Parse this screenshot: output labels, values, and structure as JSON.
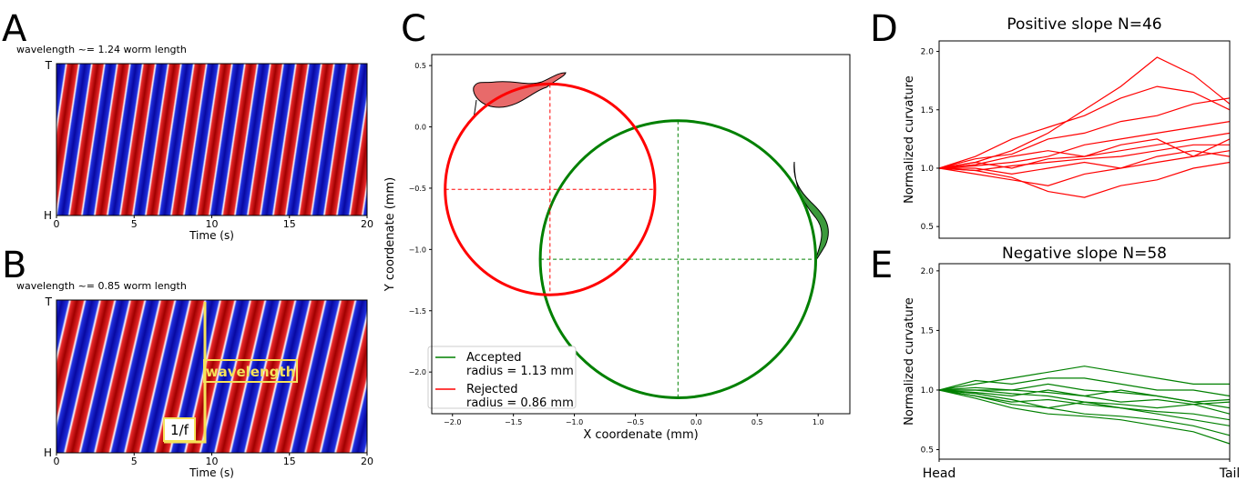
{
  "panels": [
    {
      "letter": "A",
      "subtitle": "wavelength ~= 1.24 worm length",
      "y_top": "T",
      "y_bottom": "H",
      "xlabel": "Time (s)",
      "xlim": [
        0,
        20
      ],
      "xticks": [
        0,
        5,
        10,
        15,
        20
      ]
    },
    {
      "letter": "B",
      "subtitle": "wavelength ~= 0.85 worm length",
      "y_top": "T",
      "y_bottom": "H",
      "xlabel": "Time (s)",
      "xlim": [
        0,
        20
      ],
      "xticks": [
        0,
        5,
        10,
        15,
        20
      ],
      "annotations": [
        "wavelength",
        "1/f"
      ]
    }
  ],
  "chart_data": [
    {
      "type": "circle",
      "panel": "C",
      "xlabel": "X coordenate (mm)",
      "ylabel": "Y coordenate (mm)",
      "xlim": [
        -2.17,
        1.26
      ],
      "ylim": [
        -2.34,
        0.59
      ],
      "xticks": [
        {
          "value": -2,
          "label": "−2.0"
        },
        {
          "value": -1.5,
          "label": "−1.5"
        },
        {
          "value": -1,
          "label": "−1.0"
        },
        {
          "value": -0.5,
          "label": "−0.5"
        },
        {
          "value": 0,
          "label": "0.0"
        },
        0.5,
        {
          "value": 1,
          "label": "1.0"
        }
      ],
      "yticks": [
        0.5,
        {
          "value": 0,
          "label": "0.0"
        },
        {
          "value": -0.5,
          "label": "−0.5"
        },
        {
          "value": -1,
          "label": "−1.0"
        },
        {
          "value": -1.5,
          "label": "−1.5"
        },
        {
          "value": -2,
          "label": "−2.0"
        }
      ],
      "legend": "lower left",
      "series": [
        {
          "name": "Accepted",
          "label": "radius = 1.13 mm",
          "color": "#008000",
          "center": [
            -0.15,
            -1.08
          ],
          "radius": 1.13
        },
        {
          "name": "Rejected",
          "label": "radius = 0.86 mm",
          "color": "#ff0000",
          "center": [
            -1.2,
            -0.51
          ],
          "radius": 0.86
        }
      ]
    },
    {
      "type": "line",
      "panel": "D",
      "title": "Positive slope N=46",
      "ylabel": "Normalized curvature",
      "x": [
        0,
        0.125,
        0.25,
        0.375,
        0.5,
        0.625,
        0.75,
        0.875,
        1
      ],
      "xlim": [
        0,
        1
      ],
      "ylim": [
        0.4,
        2.09
      ],
      "yticks": [
        0.5,
        {
          "value": 1,
          "label": "1.0"
        },
        1.5,
        {
          "value": 2,
          "label": "2.0"
        }
      ],
      "series": [
        {
          "color": "#ff0000",
          "values": [
            1,
            1.05,
            1.15,
            1.3,
            1.5,
            1.7,
            1.95,
            1.8,
            1.55
          ]
        },
        {
          "color": "#ff0000",
          "values": [
            1,
            1.1,
            1.25,
            1.35,
            1.45,
            1.6,
            1.7,
            1.65,
            1.5
          ]
        },
        {
          "color": "#ff0000",
          "values": [
            1,
            1.08,
            1.12,
            1.25,
            1.3,
            1.4,
            1.45,
            1.55,
            1.6
          ]
        },
        {
          "color": "#ff0000",
          "values": [
            1,
            1.02,
            1.05,
            1.1,
            1.2,
            1.25,
            1.3,
            1.35,
            1.4
          ]
        },
        {
          "color": "#ff0000",
          "values": [
            1,
            1.05,
            1.0,
            1.08,
            1.1,
            1.15,
            1.2,
            1.25,
            1.3
          ]
        },
        {
          "color": "#ff0000",
          "values": [
            1,
            0.98,
            1.02,
            1.05,
            1.08,
            1.1,
            1.15,
            1.2,
            1.2
          ]
        },
        {
          "color": "#ff0000",
          "values": [
            1,
            1.0,
            0.95,
            1.0,
            1.05,
            1.0,
            1.1,
            1.15,
            1.1
          ]
        },
        {
          "color": "#ff0000",
          "values": [
            1,
            0.95,
            0.9,
            0.85,
            0.95,
            1.0,
            1.05,
            1.1,
            1.15
          ]
        },
        {
          "color": "#ff0000",
          "values": [
            1,
            1.03,
            1.1,
            1.15,
            1.1,
            1.2,
            1.25,
            1.1,
            1.25
          ]
        },
        {
          "color": "#ff0000",
          "values": [
            1,
            0.98,
            0.92,
            0.8,
            0.75,
            0.85,
            0.9,
            1.0,
            1.05
          ]
        }
      ]
    },
    {
      "type": "line",
      "panel": "E",
      "title": "Negative slope N=58",
      "ylabel": "Normalized curvature",
      "x": [
        0,
        0.125,
        0.25,
        0.375,
        0.5,
        0.625,
        0.75,
        0.875,
        1
      ],
      "xlim": [
        0,
        1
      ],
      "xticks": [
        {
          "value": 0,
          "label": "Head"
        },
        {
          "value": 1,
          "label": "Tail"
        }
      ],
      "ylim": [
        0.42,
        2.06
      ],
      "yticks": [
        0.5,
        {
          "value": 1,
          "label": "1.0"
        },
        1.5,
        {
          "value": 2,
          "label": "2.0"
        }
      ],
      "series": [
        {
          "color": "#008000",
          "values": [
            1,
            1.05,
            1.1,
            1.15,
            1.2,
            1.15,
            1.1,
            1.05,
            1.05
          ]
        },
        {
          "color": "#008000",
          "values": [
            1,
            1.08,
            1.05,
            1.1,
            1.1,
            1.05,
            1.0,
            1.0,
            0.95
          ]
        },
        {
          "color": "#008000",
          "values": [
            1,
            1.0,
            1.0,
            1.05,
            1.0,
            0.98,
            0.95,
            0.9,
            0.85
          ]
        },
        {
          "color": "#008000",
          "values": [
            1,
            0.98,
            0.95,
            1.0,
            0.95,
            0.9,
            0.92,
            0.88,
            0.8
          ]
        },
        {
          "color": "#008000",
          "values": [
            1,
            0.95,
            0.9,
            0.92,
            0.88,
            0.85,
            0.82,
            0.8,
            0.75
          ]
        },
        {
          "color": "#008000",
          "values": [
            1,
            0.97,
            0.92,
            0.85,
            0.9,
            0.85,
            0.8,
            0.75,
            0.7
          ]
        },
        {
          "color": "#008000",
          "values": [
            1,
            0.95,
            0.88,
            0.85,
            0.8,
            0.78,
            0.75,
            0.7,
            0.62
          ]
        },
        {
          "color": "#008000",
          "values": [
            1,
            0.93,
            0.85,
            0.8,
            0.78,
            0.75,
            0.7,
            0.65,
            0.55
          ]
        },
        {
          "color": "#008000",
          "values": [
            1,
            1.02,
            1.0,
            0.98,
            0.95,
            1.0,
            0.95,
            0.9,
            0.92
          ]
        },
        {
          "color": "#008000",
          "values": [
            1,
            1.0,
            0.97,
            0.95,
            0.9,
            0.88,
            0.85,
            0.88,
            0.9
          ]
        }
      ]
    }
  ]
}
